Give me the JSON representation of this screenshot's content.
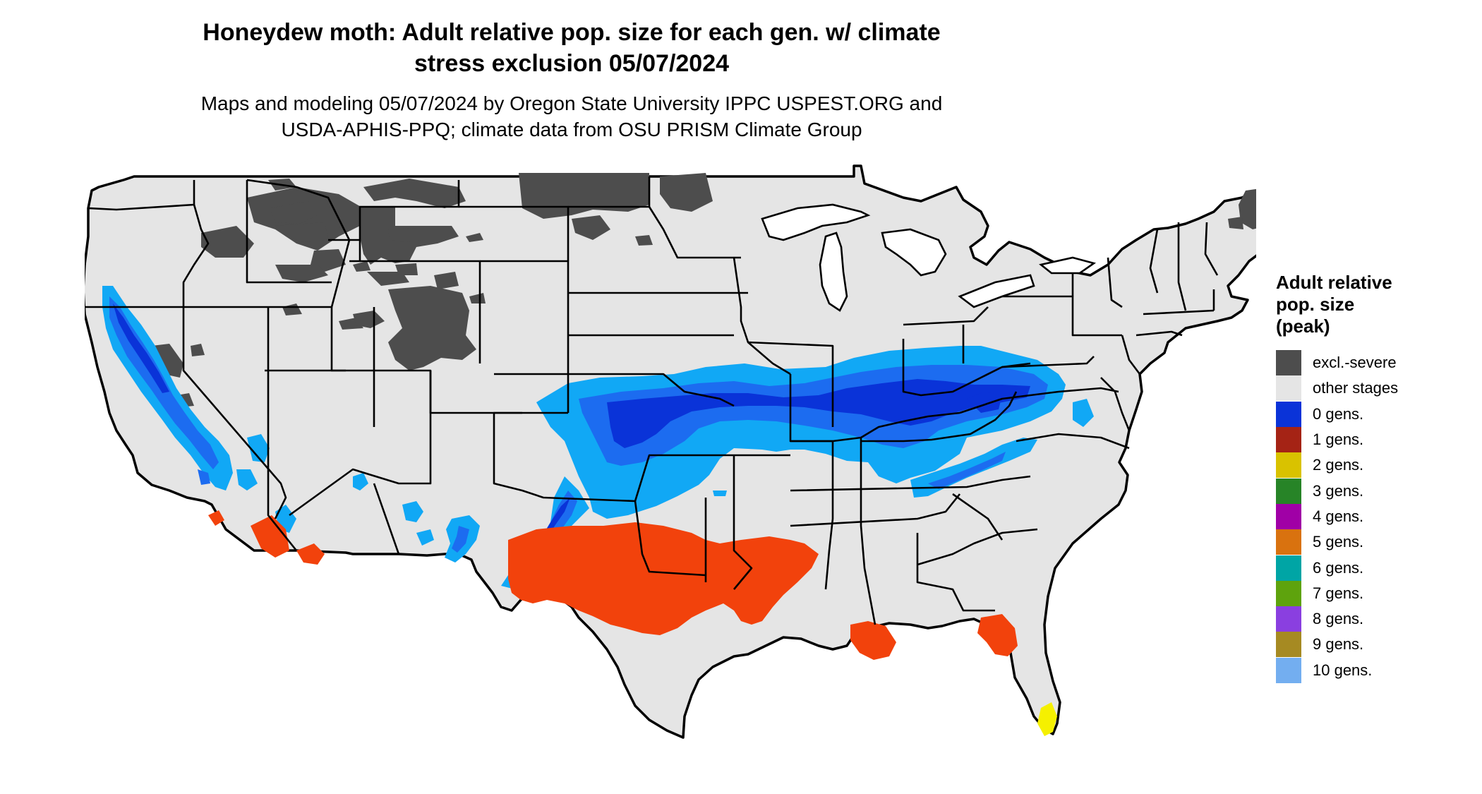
{
  "title": {
    "line1": "Honeydew moth: Adult relative pop. size for each gen. w/ climate",
    "line2": "stress exclusion 05/07/2024"
  },
  "subtitle": {
    "line1": "Maps and modeling 05/07/2024 by Oregon State University IPPC USPEST.ORG and",
    "line2": "USDA-APHIS-PPQ; climate data from OSU PRISM Climate Group"
  },
  "legend": {
    "title_lines": [
      "Adult relative",
      "pop. size",
      "(peak)"
    ],
    "items": [
      {
        "label": "excl.-severe",
        "color": "#4d4d4d"
      },
      {
        "label": "other stages",
        "color": "#e5e5e5"
      },
      {
        "label": "0 gens.",
        "color": "#0a33d8"
      },
      {
        "label": "1 gens.",
        "color": "#a52315"
      },
      {
        "label": "2 gens.",
        "color": "#d9c200"
      },
      {
        "label": "3 gens.",
        "color": "#278427"
      },
      {
        "label": "4 gens.",
        "color": "#a000a6"
      },
      {
        "label": "5 gens.",
        "color": "#d9720f"
      },
      {
        "label": "6 gens.",
        "color": "#00a5a5"
      },
      {
        "label": "7 gens.",
        "color": "#5ea30d"
      },
      {
        "label": "8 gens.",
        "color": "#8a3fe0"
      },
      {
        "label": "9 gens.",
        "color": "#a68a22"
      },
      {
        "label": "10 gens.",
        "color": "#73aef0"
      }
    ]
  },
  "map_colors": {
    "land": "#e5e5e5",
    "excluded": "#4d4d4d",
    "light_blue": "#11a8f5",
    "mid_blue": "#1c6cf0",
    "deep_blue": "#0a33d8",
    "orange_red": "#f2420c",
    "yellow": "#f5f000",
    "border": "#000000"
  }
}
